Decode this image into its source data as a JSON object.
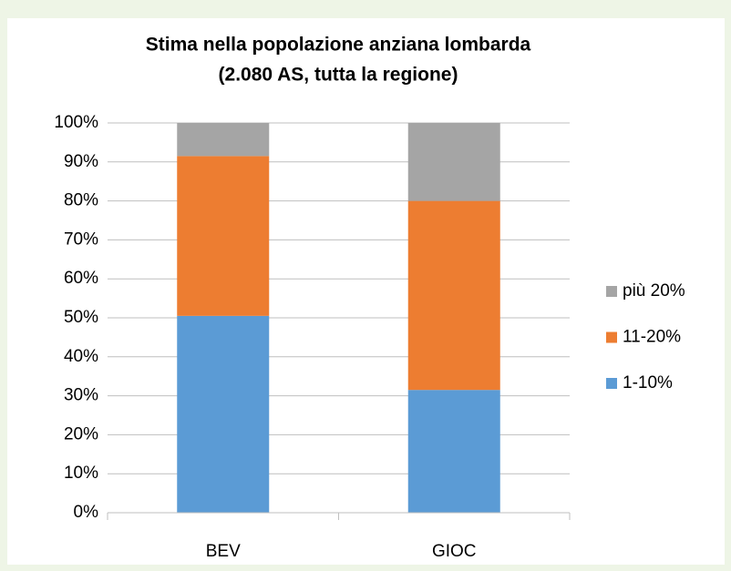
{
  "chart_data": {
    "type": "stacked_bar",
    "title": [
      "Stima nella popolazione anziana lombarda",
      "(2.080 AS, tutta la regione)"
    ],
    "categories": [
      "BEV",
      "GIOC"
    ],
    "series": [
      {
        "name": "1-10%",
        "color": "#5b9bd5",
        "values": [
          50.5,
          31.5
        ]
      },
      {
        "name": "11-20%",
        "color": "#ed7d31",
        "values": [
          41,
          48.5
        ]
      },
      {
        "name": "più 20%",
        "color": "#a5a5a5",
        "values": [
          8.5,
          20
        ]
      }
    ],
    "ylim": [
      0,
      100
    ],
    "yticks": [
      {
        "value": 0,
        "label": "0%"
      },
      {
        "value": 10,
        "label": "10%"
      },
      {
        "value": 20,
        "label": "20%"
      },
      {
        "value": 30,
        "label": "30%"
      },
      {
        "value": 40,
        "label": "40%"
      },
      {
        "value": 50,
        "label": "50%"
      },
      {
        "value": 60,
        "label": "60%"
      },
      {
        "value": 70,
        "label": "70%"
      },
      {
        "value": 80,
        "label": "80%"
      },
      {
        "value": 90,
        "label": "90%"
      },
      {
        "value": 100,
        "label": "100%"
      }
    ],
    "grid": true,
    "legend": "right"
  }
}
